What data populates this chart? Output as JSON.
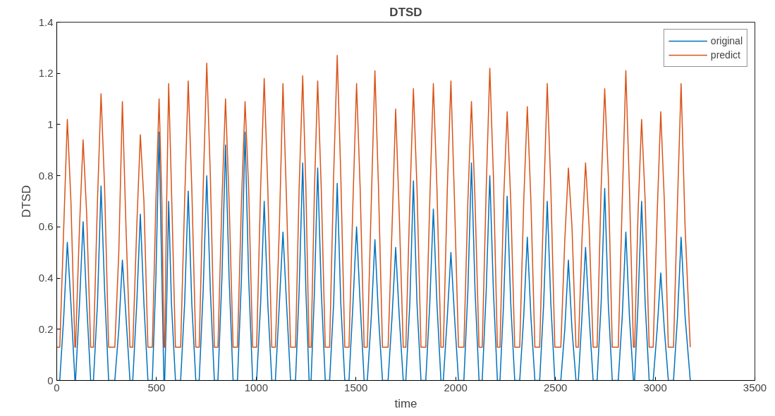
{
  "chart_data": {
    "type": "line",
    "title": "DTSD",
    "xlabel": "time",
    "ylabel": "DTSD",
    "x": [
      0,
      15,
      35,
      53,
      71,
      91,
      94,
      114,
      132,
      150,
      170,
      184,
      204,
      222,
      240,
      260,
      291,
      311,
      329,
      347,
      367,
      381,
      401,
      419,
      437,
      457,
      479,
      497,
      513,
      527,
      537,
      541,
      551,
      561,
      575,
      595,
      621,
      641,
      659,
      677,
      697,
      714,
      734,
      752,
      770,
      790,
      808,
      828,
      846,
      864,
      884,
      906,
      926,
      944,
      962,
      982,
      1002,
      1022,
      1040,
      1058,
      1078,
      1096,
      1116,
      1134,
      1152,
      1172,
      1197,
      1215,
      1233,
      1249,
      1265,
      1275,
      1292,
      1308,
      1326,
      1346,
      1368,
      1388,
      1406,
      1424,
      1444,
      1465,
      1485,
      1503,
      1521,
      1541,
      1557,
      1577,
      1595,
      1613,
      1633,
      1661,
      1681,
      1699,
      1717,
      1737,
      1750,
      1770,
      1788,
      1806,
      1826,
      1850,
      1870,
      1888,
      1906,
      1926,
      1938,
      1958,
      1976,
      1994,
      2014,
      2041,
      2061,
      2079,
      2097,
      2117,
      2133,
      2153,
      2171,
      2189,
      2209,
      2222,
      2240,
      2258,
      2276,
      2296,
      2321,
      2341,
      2359,
      2377,
      2397,
      2421,
      2441,
      2459,
      2477,
      2497,
      2527,
      2547,
      2565,
      2583,
      2603,
      2615,
      2633,
      2651,
      2669,
      2689,
      2709,
      2729,
      2747,
      2765,
      2785,
      2815,
      2835,
      2853,
      2871,
      2891,
      2897,
      2914,
      2932,
      2950,
      2970,
      2990,
      3010,
      3028,
      3046,
      3066,
      3092,
      3112,
      3130,
      3150,
      3176
    ],
    "series": [
      {
        "name": "original",
        "color": "#0072bd",
        "values": [
          0,
          0,
          0.25,
          0.54,
          0.3,
          0,
          0,
          0.3,
          0.62,
          0.3,
          0,
          0,
          0.3,
          0.76,
          0.35,
          0,
          0,
          0.2,
          0.47,
          0.25,
          0,
          0,
          0.3,
          0.65,
          0.3,
          0,
          0,
          0.4,
          0.97,
          0.4,
          0,
          0,
          0.3,
          0.7,
          0.3,
          0,
          0,
          0.3,
          0.74,
          0.3,
          0,
          0,
          0.35,
          0.8,
          0.35,
          0,
          0,
          0.4,
          0.92,
          0.4,
          0,
          0,
          0.4,
          0.97,
          0.4,
          0,
          0,
          0.3,
          0.7,
          0.3,
          0,
          0,
          0.3,
          0.58,
          0.3,
          0,
          0,
          0.35,
          0.85,
          0.35,
          0,
          0,
          0.35,
          0.83,
          0.35,
          0,
          0,
          0.3,
          0.77,
          0.3,
          0,
          0,
          0.3,
          0.6,
          0.3,
          0,
          0,
          0.25,
          0.55,
          0.25,
          0,
          0,
          0.25,
          0.52,
          0.25,
          0,
          0,
          0.3,
          0.78,
          0.3,
          0,
          0,
          0.3,
          0.67,
          0.3,
          0,
          0,
          0.25,
          0.5,
          0.25,
          0,
          0,
          0.35,
          0.85,
          0.35,
          0,
          0,
          0.35,
          0.8,
          0.35,
          0,
          0,
          0.3,
          0.72,
          0.3,
          0,
          0,
          0.25,
          0.56,
          0.25,
          0,
          0,
          0.3,
          0.7,
          0.3,
          0,
          0,
          0.2,
          0.47,
          0.2,
          0,
          0,
          0.25,
          0.52,
          0.25,
          0,
          0,
          0.3,
          0.75,
          0.3,
          0,
          0,
          0.25,
          0.58,
          0.25,
          0,
          0,
          0.3,
          0.7,
          0.3,
          0,
          0,
          0.2,
          0.42,
          0.2,
          0,
          0,
          0.25,
          0.56,
          0.25,
          0
        ]
      },
      {
        "name": "predict",
        "color": "#d95319",
        "values": [
          0.13,
          0.13,
          0.6,
          1.02,
          0.7,
          0.13,
          0.13,
          0.6,
          0.94,
          0.65,
          0.13,
          0.13,
          0.7,
          1.12,
          0.75,
          0.13,
          0.13,
          0.5,
          1.09,
          0.6,
          0.13,
          0.13,
          0.6,
          0.96,
          0.7,
          0.13,
          0.13,
          0.7,
          1.1,
          0.7,
          0.13,
          0.13,
          0.7,
          1.16,
          0.75,
          0.13,
          0.13,
          0.7,
          1.17,
          0.75,
          0.13,
          0.13,
          0.75,
          1.24,
          0.8,
          0.13,
          0.13,
          0.7,
          1.1,
          0.7,
          0.13,
          0.13,
          0.7,
          1.09,
          0.75,
          0.13,
          0.13,
          0.75,
          1.18,
          0.75,
          0.13,
          0.13,
          0.6,
          1.16,
          0.7,
          0.13,
          0.13,
          0.75,
          1.19,
          0.75,
          0.13,
          0.13,
          0.75,
          1.17,
          0.75,
          0.13,
          0.13,
          0.8,
          1.27,
          0.8,
          0.13,
          0.13,
          0.7,
          1.16,
          0.75,
          0.13,
          0.13,
          0.7,
          1.21,
          0.75,
          0.13,
          0.13,
          0.6,
          1.06,
          0.65,
          0.13,
          0.13,
          0.7,
          1.14,
          0.75,
          0.13,
          0.13,
          0.7,
          1.16,
          0.75,
          0.13,
          0.13,
          0.75,
          1.17,
          0.7,
          0.13,
          0.13,
          0.7,
          1.09,
          0.7,
          0.13,
          0.13,
          0.75,
          1.22,
          0.8,
          0.13,
          0.13,
          0.7,
          1.05,
          0.7,
          0.13,
          0.13,
          0.7,
          1.07,
          0.7,
          0.13,
          0.13,
          0.7,
          1.16,
          0.75,
          0.13,
          0.13,
          0.55,
          0.83,
          0.6,
          0.13,
          0.13,
          0.55,
          0.85,
          0.6,
          0.13,
          0.13,
          0.75,
          1.14,
          0.8,
          0.13,
          0.13,
          0.7,
          1.21,
          0.75,
          0.13,
          0.13,
          0.65,
          1.02,
          0.7,
          0.13,
          0.13,
          0.65,
          1.05,
          0.7,
          0.13,
          0.13,
          0.7,
          1.16,
          0.6,
          0.13
        ]
      }
    ],
    "xlim": [
      0,
      3500
    ],
    "xticks": [
      0,
      500,
      1000,
      1500,
      2000,
      2500,
      3000,
      3500
    ],
    "ylim": [
      0,
      1.4
    ],
    "yticks": [
      0,
      0.2,
      0.4,
      {
        "value": 0.6,
        "label": "0.6"
      },
      0.8,
      1,
      1.2,
      1.4
    ],
    "grid": false,
    "legend": "top right",
    "line_style": "solid",
    "marker": "none"
  }
}
